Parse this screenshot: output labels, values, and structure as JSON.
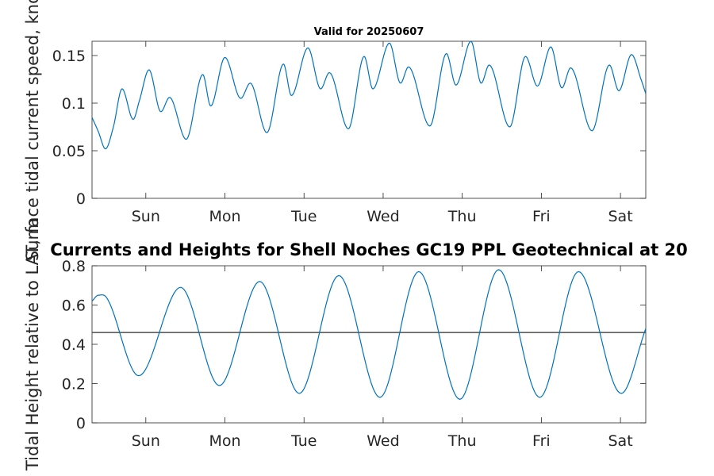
{
  "chart_data": [
    {
      "type": "line",
      "title": "Valid for 20250607",
      "ylabel": "Surface tidal current speed, knots",
      "xlim": [
        0,
        7
      ],
      "ylim": [
        0,
        0.165
      ],
      "yticks": [
        0,
        0.05,
        0.1,
        0.15
      ],
      "ytick_labels": [
        "0",
        "0.05",
        "0.1",
        "0.15"
      ],
      "xticks": [
        0.68,
        1.68,
        2.68,
        3.68,
        4.68,
        5.68,
        6.68
      ],
      "xtick_labels": [
        "Sun",
        "Mon",
        "Tue",
        "Wed",
        "Thu",
        "Fri",
        "Sat"
      ],
      "color": "#0072BD",
      "series": [
        {
          "x": [
            0,
            0.08,
            0.17,
            0.27,
            0.38,
            0.52,
            0.6,
            0.72,
            0.87,
            0.98,
            1.19,
            1.4,
            1.5,
            1.68,
            1.88,
            2.0,
            2.21,
            2.42,
            2.52,
            2.73,
            2.89,
            3.0,
            3.24,
            3.44,
            3.55,
            3.76,
            3.9,
            4.0,
            4.27,
            4.48,
            4.6,
            4.79,
            4.92,
            5.02,
            5.28,
            5.48,
            5.63,
            5.8,
            5.94,
            6.05,
            6.32,
            6.54,
            6.66,
            6.82,
            6.94,
            7.0
          ],
          "y": [
            0.085,
            0.07,
            0.052,
            0.075,
            0.115,
            0.083,
            0.103,
            0.135,
            0.091,
            0.106,
            0.062,
            0.13,
            0.097,
            0.148,
            0.105,
            0.121,
            0.069,
            0.141,
            0.108,
            0.158,
            0.115,
            0.132,
            0.073,
            0.149,
            0.115,
            0.163,
            0.121,
            0.138,
            0.076,
            0.152,
            0.119,
            0.165,
            0.121,
            0.14,
            0.075,
            0.149,
            0.118,
            0.159,
            0.116,
            0.137,
            0.071,
            0.14,
            0.113,
            0.151,
            0.125,
            0.11
          ]
        }
      ]
    },
    {
      "type": "line",
      "title": "Currents and Heights for Shell Noches   GC19 PPL  Geotechnical at 20",
      "ylabel": "Tidal Height relative to LAT, m",
      "xlim": [
        0,
        7
      ],
      "ylim": [
        0,
        0.8
      ],
      "yticks": [
        0,
        0.2,
        0.4,
        0.6,
        0.8
      ],
      "ytick_labels": [
        "0",
        "0.2",
        "0.4",
        "0.6",
        "0.8"
      ],
      "xticks": [
        0.68,
        1.68,
        2.68,
        3.68,
        4.68,
        5.68,
        6.68
      ],
      "xtick_labels": [
        "Sun",
        "Mon",
        "Tue",
        "Wed",
        "Thu",
        "Fri",
        "Sat"
      ],
      "color": "#0072BD",
      "reference_line": 0.46,
      "reference_color": "#4d4d4d",
      "series": [
        {
          "x": [
            0,
            0.08,
            0.18,
            0.59,
            1.12,
            1.61,
            2.12,
            2.62,
            3.12,
            3.64,
            4.13,
            4.65,
            5.14,
            5.66,
            6.15,
            6.69,
            7.0
          ],
          "y": [
            0.62,
            0.65,
            0.64,
            0.24,
            0.69,
            0.19,
            0.72,
            0.15,
            0.75,
            0.13,
            0.77,
            0.12,
            0.78,
            0.13,
            0.77,
            0.15,
            0.48
          ]
        }
      ]
    }
  ]
}
